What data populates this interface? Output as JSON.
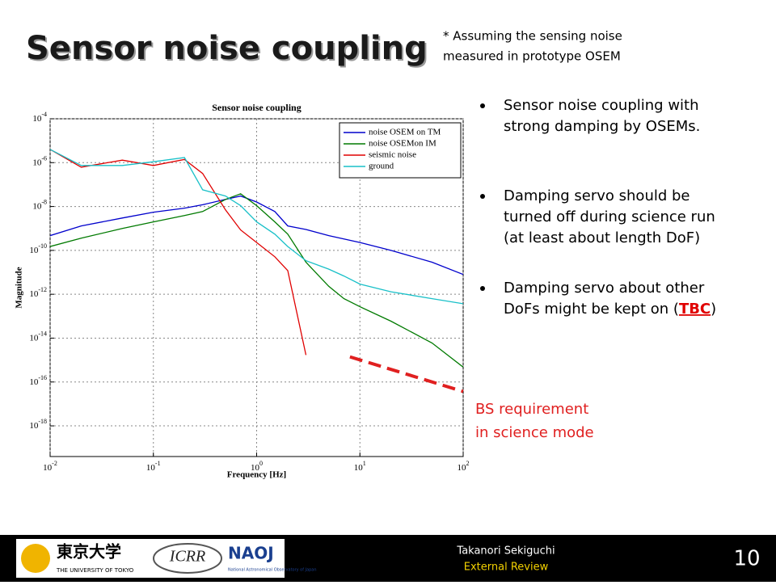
{
  "slide": {
    "title": "Sensor noise coupling",
    "note": [
      "* Assuming the sensing noise",
      "measured in prototype OSEM"
    ],
    "bullets": [
      {
        "lines": [
          "Sensor noise coupling with",
          "strong damping by OSEMs."
        ]
      },
      {
        "lines": [
          "Damping servo should be",
          "turned off during science run",
          "(at least about length DoF)"
        ]
      },
      {
        "lines": [
          "Damping servo about other",
          "DoFs might be kept on ("
        ],
        "highlight": "TBC",
        "after": ")"
      }
    ],
    "footer": {
      "author": "Takanori Sekiguchi",
      "event": "External Review",
      "page": "10",
      "logos": [
        "東京大学",
        "THE UNIVERSITY OF TOKYO",
        "ICRR",
        "NAOJ",
        "National Astronomical Observatory of Japan"
      ]
    }
  },
  "chart_data": {
    "type": "line",
    "title": "Sensor noise coupling",
    "x_label": "Frequency [Hz]",
    "y_label": "Magnitude",
    "xlog": true,
    "ylog": true,
    "grid": true,
    "legend": "upper right",
    "xlim": [
      0.01,
      100
    ],
    "ylim": [
      4e-20,
      0.0001
    ],
    "xticks": [
      {
        "value": 0.01,
        "label": "10",
        "exponent": "-2"
      },
      {
        "value": 0.1,
        "label": "10",
        "exponent": "-1"
      },
      {
        "value": 1,
        "label": "10",
        "exponent": "0"
      },
      {
        "value": 10,
        "label": "10",
        "exponent": "1"
      },
      {
        "value": 100,
        "label": "10",
        "exponent": "2"
      }
    ],
    "yticks": [
      {
        "value": 0.0001,
        "label": "10",
        "exponent": "-4"
      },
      {
        "value": 1e-06,
        "label": "10",
        "exponent": "-6"
      },
      {
        "value": 1e-08,
        "label": "10",
        "exponent": "-8"
      },
      {
        "value": 1e-10,
        "label": "10",
        "exponent": "-10"
      },
      {
        "value": 1e-12,
        "label": "10",
        "exponent": "-12"
      },
      {
        "value": 1e-14,
        "label": "10",
        "exponent": "-14"
      },
      {
        "value": 1e-16,
        "label": "10",
        "exponent": "-16"
      },
      {
        "value": 1e-18,
        "label": "10",
        "exponent": "-18"
      }
    ],
    "x": [
      0.01,
      0.02,
      0.05,
      0.1,
      0.2,
      0.3,
      0.5,
      0.7,
      1,
      1.5,
      2,
      3,
      5,
      7,
      10,
      20,
      50,
      100
    ],
    "series": [
      {
        "name": "noise OSEM on TM",
        "color": "#0000cc",
        "values": [
          4.7e-10,
          1.3e-09,
          3e-09,
          5.5e-09,
          8.4e-09,
          1.2e-08,
          2.1e-08,
          3e-08,
          1.6e-08,
          5.9e-09,
          1.3e-09,
          9e-10,
          4.7e-10,
          3.3e-10,
          2.3e-10,
          1e-10,
          2.9e-11,
          8e-12
        ]
      },
      {
        "name": "noise OSEMon IM",
        "color": "#007a00",
        "values": [
          1.5e-10,
          3.6e-10,
          1e-09,
          2e-09,
          3.9e-09,
          5.9e-09,
          2.1e-08,
          3.8e-08,
          1.1e-08,
          2e-09,
          5.5e-10,
          2.9e-11,
          2.3e-12,
          6.3e-13,
          2.7e-13,
          5.9e-14,
          6e-15,
          4.8e-16
        ]
      },
      {
        "name": "seismic noise",
        "color": "#e00000",
        "values": [
          4e-06,
          6.2e-07,
          1.3e-06,
          7.4e-07,
          1.4e-06,
          3.2e-07,
          7e-09,
          8.5e-10,
          2.3e-10,
          5.1e-11,
          1.2e-11,
          1.7e-15,
          null,
          null,
          null,
          null,
          null,
          null
        ]
      },
      {
        "name": "ground",
        "color": "#19c0c8",
        "values": [
          4e-06,
          7.4e-07,
          7.4e-07,
          1.1e-06,
          1.7e-06,
          5.8e-08,
          3e-08,
          1.1e-08,
          2e-09,
          5.5e-10,
          1.5e-10,
          3.4e-11,
          1.4e-11,
          6.8e-12,
          2.9e-12,
          1.3e-12,
          6.3e-13,
          3.7e-13
        ]
      }
    ],
    "requirement": {
      "x": [
        8,
        100
      ],
      "values": [
        1.4e-15,
        3.7e-17
      ],
      "color": "#e02020",
      "label": [
        "BS requirement",
        "in science mode"
      ]
    }
  }
}
